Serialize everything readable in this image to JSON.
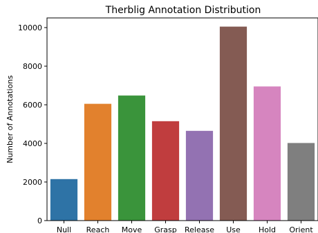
{
  "chart_data": {
    "type": "bar",
    "title": "Therblig Annotation Distribution",
    "xlabel": "",
    "ylabel": "Number of Annotations",
    "categories": [
      "Null",
      "Reach",
      "Move",
      "Grasp",
      "Release",
      "Use",
      "Hold",
      "Orient"
    ],
    "values": [
      2150,
      6050,
      6480,
      5150,
      4650,
      10050,
      6950,
      4020
    ],
    "colors": [
      "#2e73a6",
      "#e2812d",
      "#3a943b",
      "#c03d3e",
      "#9372b2",
      "#845b53",
      "#d685bf",
      "#7f7f7f"
    ],
    "ylim": [
      0,
      10500
    ],
    "yticks": [
      0,
      2000,
      4000,
      6000,
      8000,
      10000
    ],
    "ytick_labels": [
      "0",
      "2000",
      "4000",
      "6000",
      "8000",
      "10000"
    ],
    "grid": false,
    "legend": "none"
  }
}
